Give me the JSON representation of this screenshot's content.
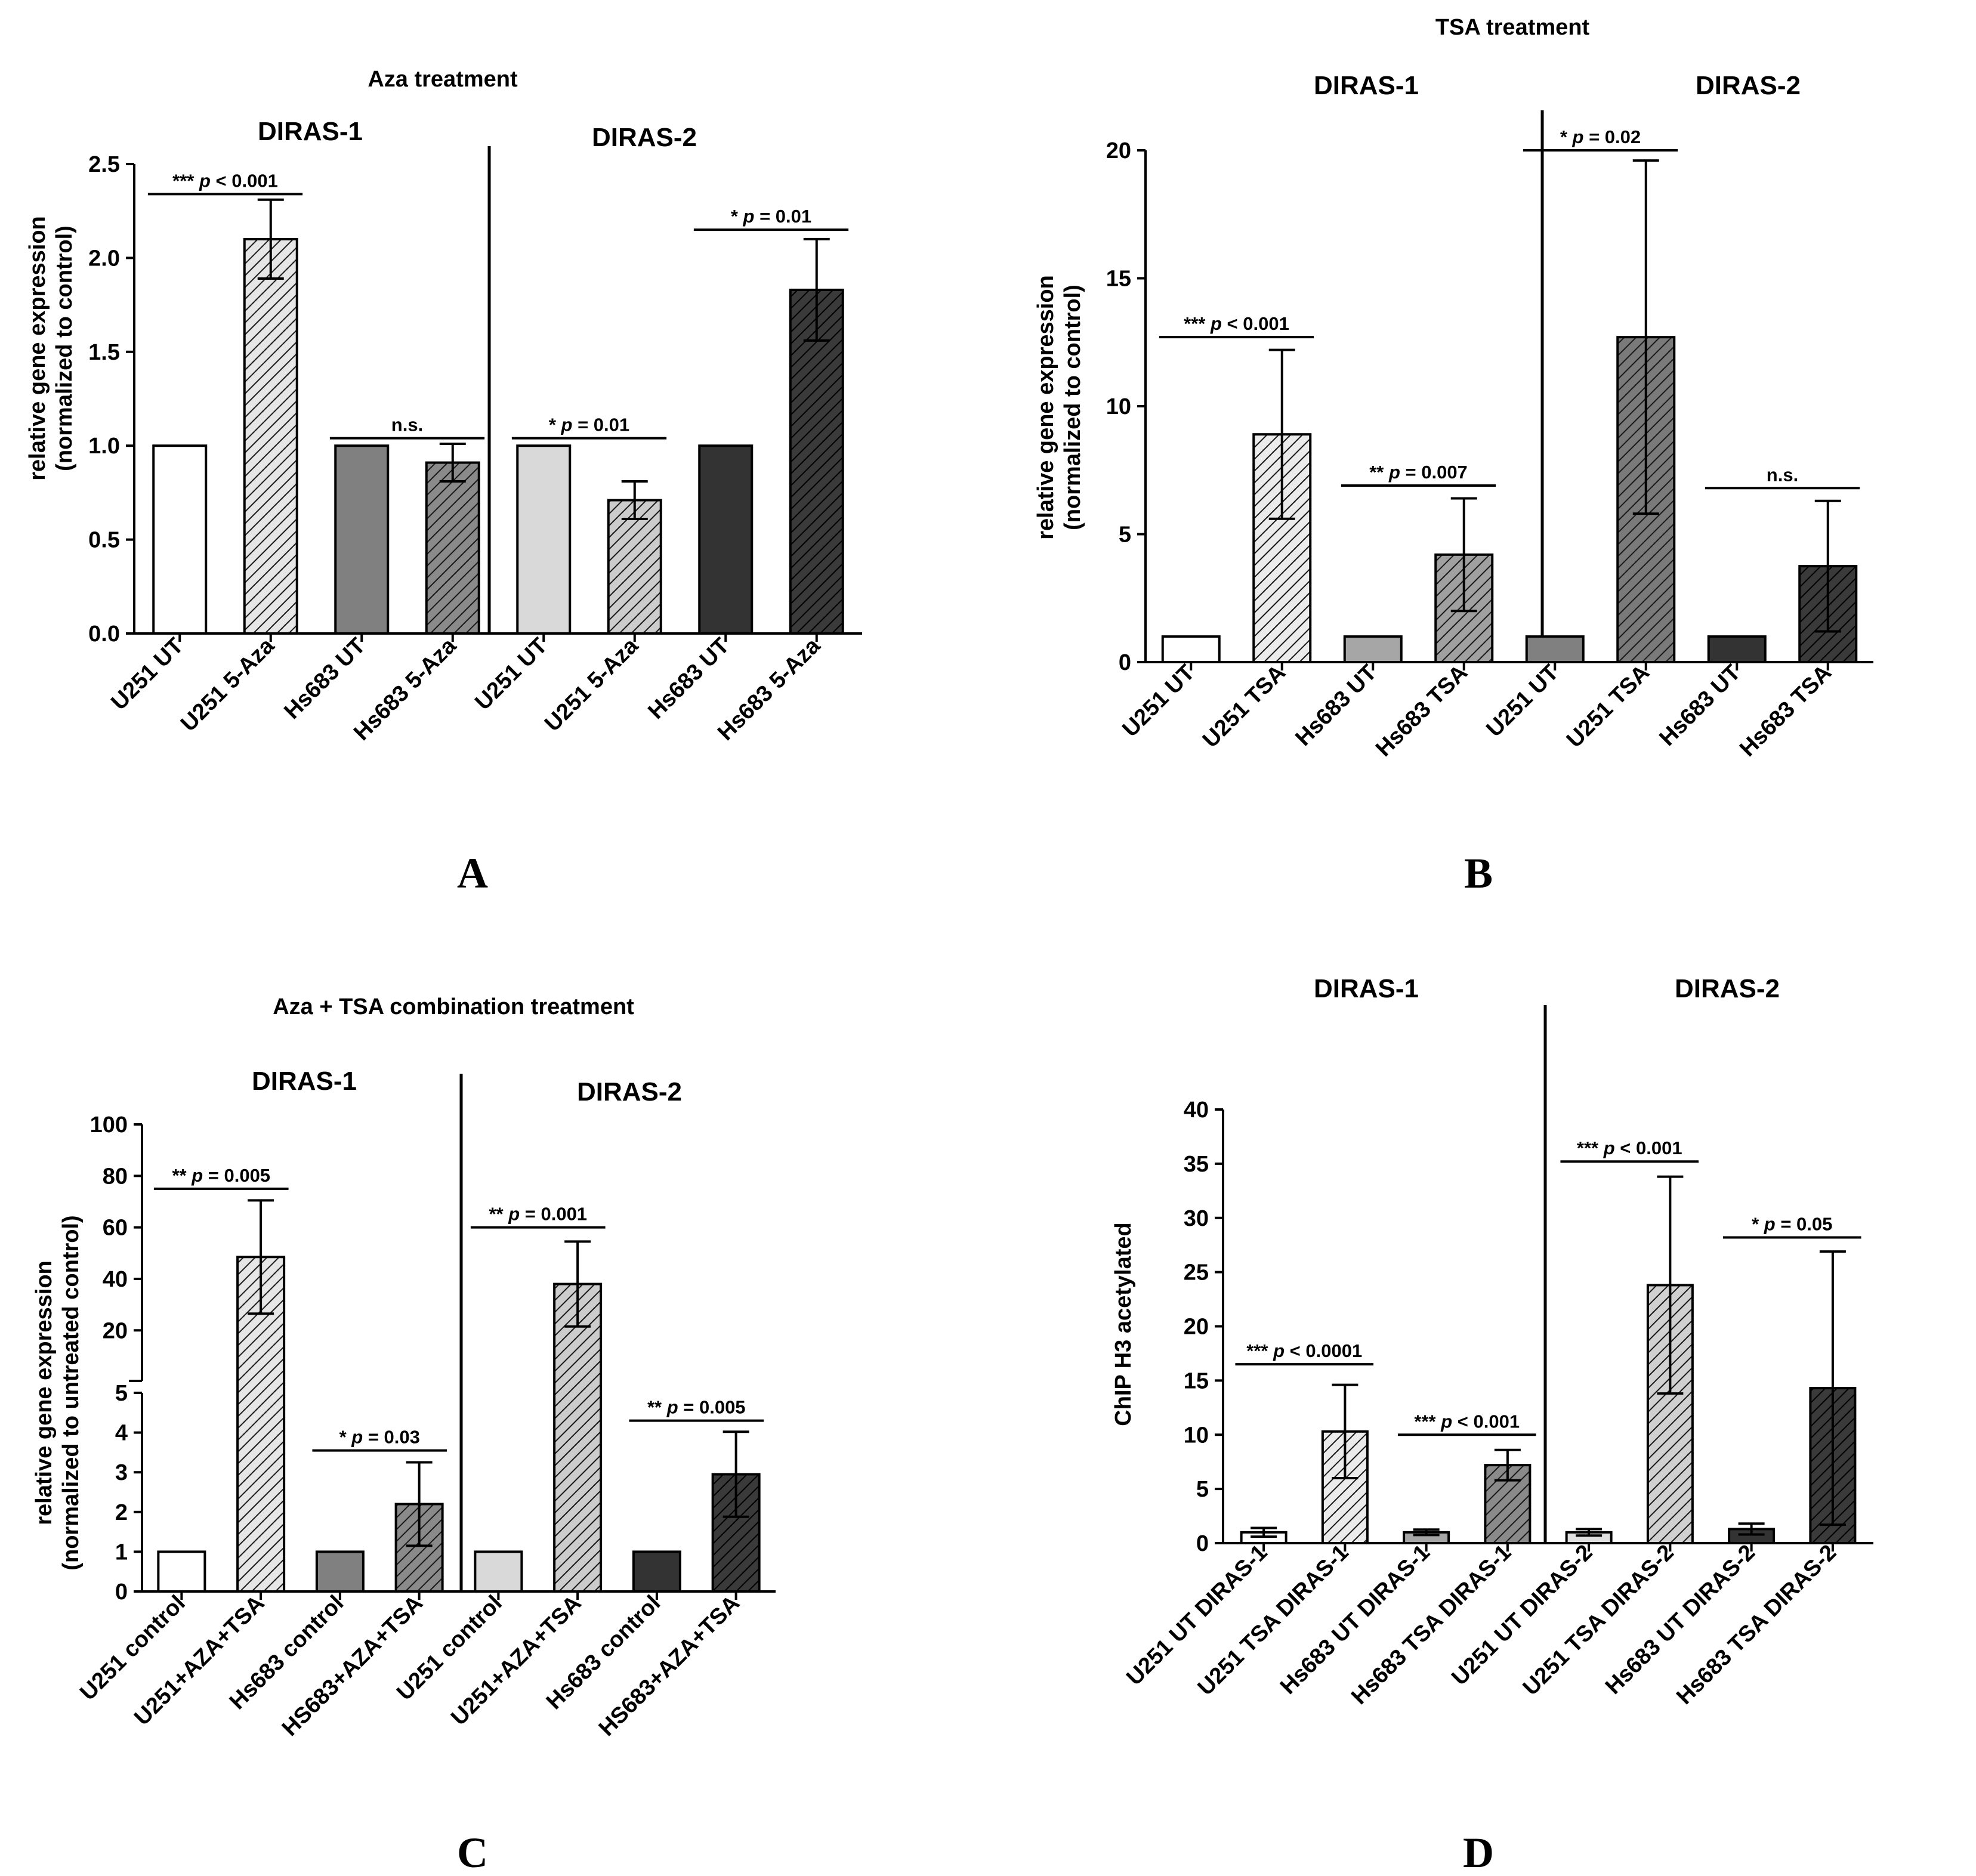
{
  "chart_data": [
    {
      "panel": "A",
      "type": "bar",
      "title": "Aza treatment",
      "groups": [
        "DIRAS-1",
        "DIRAS-2"
      ],
      "ylabel": [
        "relative gene expression",
        "(normalized to control)"
      ],
      "ylim": [
        0,
        2.5
      ],
      "yticks": [
        "0.0",
        "0.5",
        "1.0",
        "1.5",
        "2.0",
        "2.5"
      ],
      "categories": [
        "U251 UT",
        "U251 5-Aza",
        "Hs683 UT",
        "Hs683 5-Aza",
        "U251 UT",
        "U251 5-Aza",
        "Hs683 UT",
        "Hs683 5-Aza"
      ],
      "values": [
        1.0,
        2.1,
        1.0,
        0.91,
        1.0,
        0.71,
        1.0,
        1.83
      ],
      "errors": [
        0,
        0.21,
        0,
        0.1,
        0,
        0.1,
        0,
        0.27
      ],
      "fills": [
        "#ffffff",
        "hatch:#e6e6e6",
        "#808080",
        "hatch:#8a8a8a",
        "#d9d9d9",
        "hatch:#cccccc",
        "#333333",
        "hatch:#3a3a3a"
      ],
      "significance": [
        {
          "prefix": "*** ",
          "p": "p",
          "rest": "  < 0.001",
          "from": 0,
          "to": 1,
          "y": 2.34
        },
        {
          "prefix": "",
          "p": "",
          "rest": "n.s.",
          "from": 2,
          "to": 3,
          "y": 1.04
        },
        {
          "prefix": "* ",
          "p": "p",
          "rest": " = 0.01",
          "from": 4,
          "to": 5,
          "y": 1.04
        },
        {
          "prefix": "* ",
          "p": "p",
          "rest": " = 0.01",
          "from": 6,
          "to": 7,
          "y": 2.15
        }
      ]
    },
    {
      "panel": "B",
      "type": "bar",
      "title": "TSA treatment",
      "groups": [
        "DIRAS-1",
        "DIRAS-2"
      ],
      "ylabel": [
        "relative gene expression",
        "(normalized to control)"
      ],
      "ylim": [
        0,
        20
      ],
      "yticks": [
        "0",
        "5",
        "10",
        "15",
        "20"
      ],
      "categories": [
        "U251 UT",
        "U251 TSA",
        "Hs683 UT",
        "Hs683 TSA",
        "U251 UT",
        "U251 TSA",
        "Hs683 UT",
        "Hs683 TSA"
      ],
      "values": [
        1.0,
        8.9,
        1.0,
        4.2,
        1.0,
        12.7,
        1.0,
        3.75
      ],
      "errors": [
        0,
        3.3,
        0,
        2.2,
        0,
        6.9,
        0,
        2.55
      ],
      "fills": [
        "#ffffff",
        "hatch:#ebebeb",
        "#a6a6a6",
        "hatch:#a0a0a0",
        "#808080",
        "hatch:#7a7a7a",
        "#333333",
        "hatch:#3a3a3a"
      ],
      "significance": [
        {
          "prefix": "*** ",
          "p": "p",
          "rest": " < 0.001",
          "from": 0,
          "to": 1,
          "y": 12.7
        },
        {
          "prefix": "** ",
          "p": "p",
          "rest": " = 0.007",
          "from": 2,
          "to": 3,
          "y": 6.9
        },
        {
          "prefix": "* ",
          "p": "p",
          "rest": " = 0.02",
          "from": 4,
          "to": 5,
          "y": 20.0
        },
        {
          "prefix": "",
          "p": "",
          "rest": "n.s.",
          "from": 6,
          "to": 7,
          "y": 6.8
        }
      ]
    },
    {
      "panel": "C",
      "type": "bar",
      "title": "Aza + TSA combination treatment",
      "groups": [
        "DIRAS-1",
        "DIRAS-2"
      ],
      "ylabel": [
        "relative gene expression",
        "(normalized to untreated control)"
      ],
      "ylim": [
        0,
        100
      ],
      "axis_break": {
        "lower": [
          0,
          5
        ],
        "upper": [
          5,
          100
        ]
      },
      "yticks_lower": [
        "0",
        "1",
        "2",
        "3",
        "4",
        "5"
      ],
      "yticks_upper": [
        "20",
        "40",
        "60",
        "80",
        "100"
      ],
      "categories": [
        "U251 control",
        "U251+AZA+TSA",
        "Hs683 control",
        "HS683+AZA+TSA",
        "U251 control",
        "U251+AZA+TSA",
        "Hs683 control",
        "HS683+AZA+TSA"
      ],
      "values": [
        1.0,
        48.5,
        1.0,
        2.2,
        1.0,
        38.0,
        1.0,
        2.95
      ],
      "errors": [
        0,
        22.0,
        0,
        1.05,
        0,
        16.5,
        0,
        1.07
      ],
      "fills": [
        "#ffffff",
        "hatch:#e6e6e6",
        "#808080",
        "hatch:#8a8a8a",
        "#d9d9d9",
        "hatch:#cccccc",
        "#333333",
        "hatch:#3a3a3a"
      ],
      "significance": [
        {
          "prefix": "** ",
          "p": "p",
          "rest": " = 0.005",
          "from": 0,
          "to": 1,
          "y": 75.0
        },
        {
          "prefix": "* ",
          "p": "p",
          "rest": " = 0.03",
          "from": 2,
          "to": 3,
          "y": 3.55
        },
        {
          "prefix": "** ",
          "p": "p",
          "rest": " = 0.001",
          "from": 4,
          "to": 5,
          "y": 60.0
        },
        {
          "prefix": "** ",
          "p": "p",
          "rest": " = 0.005",
          "from": 6,
          "to": 7,
          "y": 4.3
        }
      ]
    },
    {
      "panel": "D",
      "type": "bar",
      "title": "",
      "groups": [
        "DIRAS-1",
        "DIRAS-2"
      ],
      "ylabel": [
        "ChIP H3 acetylated"
      ],
      "ylim": [
        0,
        40
      ],
      "yticks": [
        "0",
        "5",
        "10",
        "15",
        "20",
        "25",
        "30",
        "35",
        "40"
      ],
      "categories": [
        "U251 UT DIRAS-1",
        "U251 TSA DIRAS-1",
        "Hs683 UT DIRAS-1",
        "Hs683 TSA DIRAS-1",
        "U251 UT DIRAS-2",
        "U251 TSA DIRAS-2",
        "Hs683 UT DIRAS-2",
        "Hs683 TSA DIRAS-2"
      ],
      "values": [
        1.0,
        10.3,
        1.0,
        7.2,
        1.0,
        23.8,
        1.3,
        14.3
      ],
      "errors": [
        0.4,
        4.3,
        0.25,
        1.4,
        0.3,
        10.0,
        0.5,
        12.6
      ],
      "fills": [
        "#ffffff",
        "hatch:#ebebeb",
        "#a6a6a6",
        "hatch:#8a8a8a",
        "#e0e0e0",
        "hatch:#d0d0d0",
        "#333333",
        "hatch:#3a3a3a"
      ],
      "significance": [
        {
          "prefix": "*** ",
          "p": "p",
          "rest": " < 0.0001",
          "from": 0,
          "to": 1,
          "y": 16.5
        },
        {
          "prefix": "*** ",
          "p": "p",
          "rest": " < 0.001",
          "from": 2,
          "to": 3,
          "y": 10.0
        },
        {
          "prefix": "*** ",
          "p": "p",
          "rest": " < 0.001",
          "from": 4,
          "to": 5,
          "y": 35.2
        },
        {
          "prefix": "* ",
          "p": "p",
          "rest": " = 0.05",
          "from": 6,
          "to": 7,
          "y": 28.2
        }
      ]
    }
  ]
}
